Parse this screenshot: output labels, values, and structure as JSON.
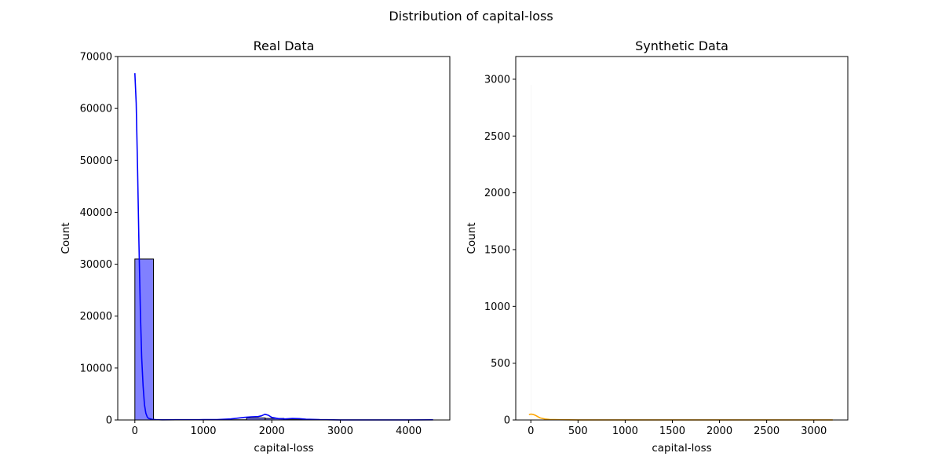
{
  "figure": {
    "suptitle": "Distribution of capital-loss"
  },
  "chart_data": [
    {
      "type": "bar",
      "title": "Real Data",
      "xlabel": "capital-loss",
      "ylabel": "Count",
      "xlim": [
        -250,
        4600
      ],
      "ylim": [
        0,
        70000
      ],
      "xticks": [
        0,
        1000,
        2000,
        3000,
        4000
      ],
      "yticks": [
        0,
        10000,
        20000,
        30000,
        40000,
        50000,
        60000,
        70000
      ],
      "grid": false,
      "colors": {
        "bar_fill": "#8080ff",
        "bar_edge": "#000000",
        "kde": "#0000ff"
      },
      "histogram": {
        "bin_width": 272,
        "bins": [
          {
            "x0": 0,
            "count": 31000
          },
          {
            "x0": 1360,
            "count": 40
          },
          {
            "x0": 1632,
            "count": 400
          },
          {
            "x0": 1904,
            "count": 300
          },
          {
            "x0": 2176,
            "count": 60
          },
          {
            "x0": 2448,
            "count": 20
          }
        ]
      },
      "kde": {
        "x": [
          0,
          20,
          40,
          60,
          80,
          100,
          120,
          140,
          160,
          180,
          200,
          250,
          300,
          400,
          600,
          800,
          1000,
          1200,
          1400,
          1500,
          1600,
          1700,
          1800,
          1850,
          1900,
          1950,
          2000,
          2100,
          2200,
          2300,
          2400,
          2500,
          2700,
          3000,
          3500,
          4000,
          4356
        ],
        "y": [
          66800,
          61000,
          48000,
          34000,
          21000,
          12000,
          6500,
          3000,
          1300,
          600,
          300,
          120,
          60,
          30,
          40,
          50,
          60,
          80,
          200,
          350,
          500,
          600,
          650,
          800,
          1100,
          900,
          500,
          250,
          200,
          280,
          250,
          150,
          60,
          20,
          10,
          20,
          30
        ]
      }
    },
    {
      "type": "bar",
      "title": "Synthetic Data",
      "xlabel": "capital-loss",
      "ylabel": "Count",
      "xlim": [
        -160,
        3360
      ],
      "ylim": [
        0,
        3200
      ],
      "xticks": [
        0,
        500,
        1000,
        1500,
        2000,
        2500,
        3000
      ],
      "yticks": [
        0,
        500,
        1000,
        1500,
        2000,
        2500,
        3000
      ],
      "grid": false,
      "colors": {
        "bar_fill": "#f5f5f5",
        "kde": "#ffa500"
      },
      "histogram": {
        "bin_width": 4,
        "bins": [
          {
            "x0": -2,
            "count": 2950
          }
        ]
      },
      "kde": {
        "x": [
          -20,
          0,
          20,
          40,
          60,
          80,
          100,
          150,
          200,
          300,
          500,
          1000,
          1500,
          2000,
          2500,
          3000,
          3200
        ],
        "y": [
          48,
          52,
          50,
          44,
          36,
          26,
          18,
          8,
          4,
          2,
          1,
          1,
          1,
          1,
          1,
          1,
          1
        ]
      }
    }
  ]
}
